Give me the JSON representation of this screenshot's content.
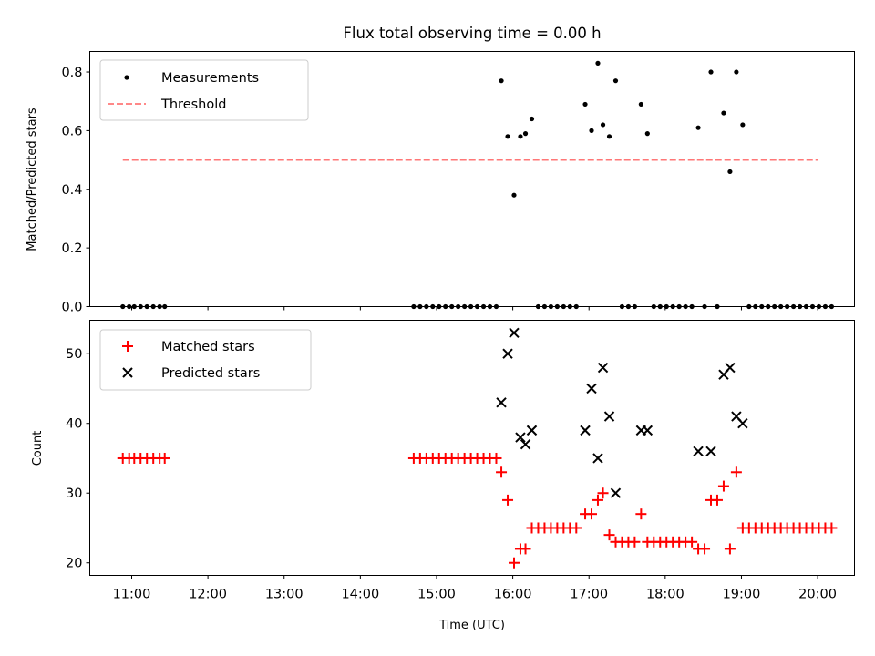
{
  "chart_data": [
    {
      "type": "scatter",
      "title": "Flux total observing time = 0.00 h",
      "ylabel": "Matched/Predicted stars",
      "xlabel": "",
      "xlim": [
        "10:27",
        "20:29"
      ],
      "ylim": [
        0,
        0.87
      ],
      "yticks": [
        0.0,
        0.2,
        0.4,
        0.6,
        0.8
      ],
      "ytick_labels": [
        "0.0",
        "0.2",
        "0.4",
        "0.6",
        "0.8"
      ],
      "legend": {
        "placement": "top-left",
        "entries": [
          "Measurements",
          "Threshold"
        ]
      },
      "colors": {
        "measurements": "#000000",
        "threshold": "#ff7777"
      },
      "series": [
        {
          "name": "Measurements",
          "style": "dot",
          "points": [
            {
              "x": "10:53",
              "y": 0
            },
            {
              "x": "10:58",
              "y": 0
            },
            {
              "x": "11:02",
              "y": 0
            },
            {
              "x": "11:07",
              "y": 0
            },
            {
              "x": "11:12",
              "y": 0
            },
            {
              "x": "11:17",
              "y": 0
            },
            {
              "x": "11:22",
              "y": 0
            },
            {
              "x": "11:26",
              "y": 0
            },
            {
              "x": "14:42",
              "y": 0
            },
            {
              "x": "14:47",
              "y": 0
            },
            {
              "x": "14:52",
              "y": 0
            },
            {
              "x": "14:57",
              "y": 0
            },
            {
              "x": "15:02",
              "y": 0
            },
            {
              "x": "15:07",
              "y": 0
            },
            {
              "x": "15:12",
              "y": 0
            },
            {
              "x": "15:17",
              "y": 0
            },
            {
              "x": "15:22",
              "y": 0
            },
            {
              "x": "15:27",
              "y": 0
            },
            {
              "x": "15:32",
              "y": 0
            },
            {
              "x": "15:37",
              "y": 0
            },
            {
              "x": "15:42",
              "y": 0
            },
            {
              "x": "15:47",
              "y": 0
            },
            {
              "x": "15:51",
              "y": 0.77
            },
            {
              "x": "15:56",
              "y": 0.58
            },
            {
              "x": "16:01",
              "y": 0.38
            },
            {
              "x": "16:06",
              "y": 0.58
            },
            {
              "x": "16:10",
              "y": 0.59
            },
            {
              "x": "16:15",
              "y": 0.64
            },
            {
              "x": "16:20",
              "y": 0
            },
            {
              "x": "16:25",
              "y": 0
            },
            {
              "x": "16:30",
              "y": 0
            },
            {
              "x": "16:35",
              "y": 0
            },
            {
              "x": "16:40",
              "y": 0
            },
            {
              "x": "16:45",
              "y": 0
            },
            {
              "x": "16:50",
              "y": 0
            },
            {
              "x": "16:57",
              "y": 0.69
            },
            {
              "x": "17:02",
              "y": 0.6
            },
            {
              "x": "17:07",
              "y": 0.83
            },
            {
              "x": "17:11",
              "y": 0.62
            },
            {
              "x": "17:16",
              "y": 0.58
            },
            {
              "x": "17:21",
              "y": 0.77
            },
            {
              "x": "17:26",
              "y": 0
            },
            {
              "x": "17:31",
              "y": 0
            },
            {
              "x": "17:36",
              "y": 0
            },
            {
              "x": "17:41",
              "y": 0.69
            },
            {
              "x": "17:46",
              "y": 0.59
            },
            {
              "x": "17:51",
              "y": 0
            },
            {
              "x": "17:56",
              "y": 0
            },
            {
              "x": "18:01",
              "y": 0
            },
            {
              "x": "18:06",
              "y": 0
            },
            {
              "x": "18:11",
              "y": 0
            },
            {
              "x": "18:16",
              "y": 0
            },
            {
              "x": "18:21",
              "y": 0
            },
            {
              "x": "18:26",
              "y": 0.61
            },
            {
              "x": "18:31",
              "y": 0
            },
            {
              "x": "18:36",
              "y": 0.8
            },
            {
              "x": "18:41",
              "y": 0
            },
            {
              "x": "18:46",
              "y": 0.66
            },
            {
              "x": "18:51",
              "y": 0.46
            },
            {
              "x": "18:56",
              "y": 0.8
            },
            {
              "x": "19:01",
              "y": 0.62
            },
            {
              "x": "19:06",
              "y": 0
            },
            {
              "x": "19:11",
              "y": 0
            },
            {
              "x": "19:16",
              "y": 0
            },
            {
              "x": "19:21",
              "y": 0
            },
            {
              "x": "19:26",
              "y": 0
            },
            {
              "x": "19:31",
              "y": 0
            },
            {
              "x": "19:36",
              "y": 0
            },
            {
              "x": "19:41",
              "y": 0
            },
            {
              "x": "19:46",
              "y": 0
            },
            {
              "x": "19:51",
              "y": 0
            },
            {
              "x": "19:56",
              "y": 0
            },
            {
              "x": "20:01",
              "y": 0
            },
            {
              "x": "20:06",
              "y": 0
            },
            {
              "x": "20:11",
              "y": 0
            }
          ]
        },
        {
          "name": "Threshold",
          "style": "dashed-line",
          "points": [
            {
              "x": "10:53",
              "y": 0.5
            },
            {
              "x": "20:00",
              "y": 0.5
            }
          ]
        }
      ]
    },
    {
      "type": "scatter",
      "title": "",
      "ylabel": "Count",
      "xlabel": "Time (UTC)",
      "xlim": [
        "10:27",
        "20:29"
      ],
      "ylim": [
        18.2,
        54.8
      ],
      "yticks": [
        20,
        30,
        40,
        50
      ],
      "ytick_labels": [
        "20",
        "30",
        "40",
        "50"
      ],
      "xticks": [
        "11:00",
        "12:00",
        "13:00",
        "14:00",
        "15:00",
        "16:00",
        "17:00",
        "18:00",
        "19:00",
        "20:00"
      ],
      "xtick_labels": [
        "11:00",
        "12:00",
        "13:00",
        "14:00",
        "15:00",
        "16:00",
        "17:00",
        "18:00",
        "19:00",
        "20:00"
      ],
      "legend": {
        "placement": "top-left",
        "entries": [
          "Matched stars",
          "Predicted stars"
        ]
      },
      "colors": {
        "matched": "#ff0000",
        "predicted": "#000000"
      },
      "series": [
        {
          "name": "Matched stars",
          "marker": "plus",
          "points": [
            {
              "x": "10:53",
              "y": 35
            },
            {
              "x": "10:58",
              "y": 35
            },
            {
              "x": "11:02",
              "y": 35
            },
            {
              "x": "11:07",
              "y": 35
            },
            {
              "x": "11:12",
              "y": 35
            },
            {
              "x": "11:17",
              "y": 35
            },
            {
              "x": "11:22",
              "y": 35
            },
            {
              "x": "11:26",
              "y": 35
            },
            {
              "x": "14:42",
              "y": 35
            },
            {
              "x": "14:47",
              "y": 35
            },
            {
              "x": "14:52",
              "y": 35
            },
            {
              "x": "14:57",
              "y": 35
            },
            {
              "x": "15:02",
              "y": 35
            },
            {
              "x": "15:07",
              "y": 35
            },
            {
              "x": "15:12",
              "y": 35
            },
            {
              "x": "15:17",
              "y": 35
            },
            {
              "x": "15:22",
              "y": 35
            },
            {
              "x": "15:27",
              "y": 35
            },
            {
              "x": "15:32",
              "y": 35
            },
            {
              "x": "15:37",
              "y": 35
            },
            {
              "x": "15:42",
              "y": 35
            },
            {
              "x": "15:47",
              "y": 35
            },
            {
              "x": "15:51",
              "y": 33
            },
            {
              "x": "15:56",
              "y": 29
            },
            {
              "x": "16:01",
              "y": 20
            },
            {
              "x": "16:06",
              "y": 22
            },
            {
              "x": "16:10",
              "y": 22
            },
            {
              "x": "16:15",
              "y": 25
            },
            {
              "x": "16:20",
              "y": 25
            },
            {
              "x": "16:25",
              "y": 25
            },
            {
              "x": "16:30",
              "y": 25
            },
            {
              "x": "16:35",
              "y": 25
            },
            {
              "x": "16:40",
              "y": 25
            },
            {
              "x": "16:45",
              "y": 25
            },
            {
              "x": "16:50",
              "y": 25
            },
            {
              "x": "16:57",
              "y": 27
            },
            {
              "x": "17:02",
              "y": 27
            },
            {
              "x": "17:07",
              "y": 29
            },
            {
              "x": "17:11",
              "y": 30
            },
            {
              "x": "17:16",
              "y": 24
            },
            {
              "x": "17:21",
              "y": 23
            },
            {
              "x": "17:26",
              "y": 23
            },
            {
              "x": "17:31",
              "y": 23
            },
            {
              "x": "17:36",
              "y": 23
            },
            {
              "x": "17:41",
              "y": 27
            },
            {
              "x": "17:46",
              "y": 23
            },
            {
              "x": "17:51",
              "y": 23
            },
            {
              "x": "17:56",
              "y": 23
            },
            {
              "x": "18:01",
              "y": 23
            },
            {
              "x": "18:06",
              "y": 23
            },
            {
              "x": "18:11",
              "y": 23
            },
            {
              "x": "18:16",
              "y": 23
            },
            {
              "x": "18:21",
              "y": 23
            },
            {
              "x": "18:26",
              "y": 22
            },
            {
              "x": "18:31",
              "y": 22
            },
            {
              "x": "18:36",
              "y": 29
            },
            {
              "x": "18:41",
              "y": 29
            },
            {
              "x": "18:46",
              "y": 31
            },
            {
              "x": "18:51",
              "y": 22
            },
            {
              "x": "18:56",
              "y": 33
            },
            {
              "x": "19:01",
              "y": 25
            },
            {
              "x": "19:06",
              "y": 25
            },
            {
              "x": "19:11",
              "y": 25
            },
            {
              "x": "19:16",
              "y": 25
            },
            {
              "x": "19:21",
              "y": 25
            },
            {
              "x": "19:26",
              "y": 25
            },
            {
              "x": "19:31",
              "y": 25
            },
            {
              "x": "19:36",
              "y": 25
            },
            {
              "x": "19:41",
              "y": 25
            },
            {
              "x": "19:46",
              "y": 25
            },
            {
              "x": "19:51",
              "y": 25
            },
            {
              "x": "19:56",
              "y": 25
            },
            {
              "x": "20:01",
              "y": 25
            },
            {
              "x": "20:06",
              "y": 25
            },
            {
              "x": "20:11",
              "y": 25
            }
          ]
        },
        {
          "name": "Predicted stars",
          "marker": "x",
          "points": [
            {
              "x": "15:51",
              "y": 43
            },
            {
              "x": "15:56",
              "y": 50
            },
            {
              "x": "16:01",
              "y": 53
            },
            {
              "x": "16:06",
              "y": 38
            },
            {
              "x": "16:10",
              "y": 37
            },
            {
              "x": "16:15",
              "y": 39
            },
            {
              "x": "16:57",
              "y": 39
            },
            {
              "x": "17:02",
              "y": 45
            },
            {
              "x": "17:07",
              "y": 35
            },
            {
              "x": "17:11",
              "y": 48
            },
            {
              "x": "17:16",
              "y": 41
            },
            {
              "x": "17:21",
              "y": 30
            },
            {
              "x": "17:41",
              "y": 39
            },
            {
              "x": "17:46",
              "y": 39
            },
            {
              "x": "18:26",
              "y": 36
            },
            {
              "x": "18:36",
              "y": 36
            },
            {
              "x": "18:46",
              "y": 47
            },
            {
              "x": "18:51",
              "y": 48
            },
            {
              "x": "18:56",
              "y": 41
            },
            {
              "x": "19:01",
              "y": 40
            }
          ]
        }
      ]
    }
  ]
}
